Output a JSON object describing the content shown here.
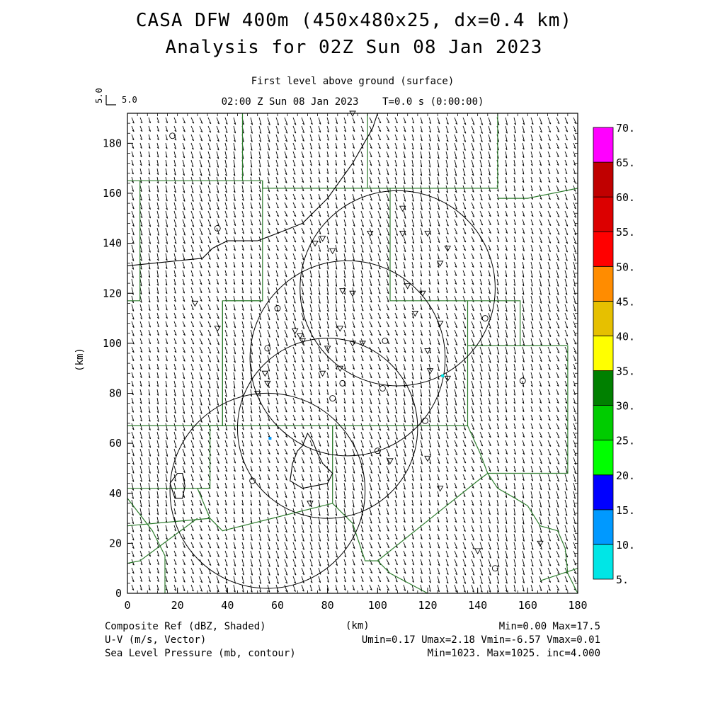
{
  "title_line1": "CASA DFW 400m (450x480x25, dx=0.4 km)",
  "title_line2": "Analysis for 02Z Sun 08 Jan 2023",
  "subtitle": "First level above ground (surface)",
  "time_line": "02:00 Z Sun 08 Jan 2023    T=0.0 s (0:00:00)",
  "reference_vector": {
    "label": "5.0",
    "value": 5.0
  },
  "footer": {
    "left": [
      "Composite Ref (dBZ, Shaded)",
      "U-V (m/s, Vector)",
      "Sea Level Pressure (mb, contour)"
    ],
    "center": "(km)",
    "right": [
      "Min=0.00 Max=17.5",
      "Umin=0.17 Umax=2.18 Vmin=-6.57 Vmax=0.01",
      "Min=1023. Max=1025. inc=4.000"
    ]
  },
  "colors": {
    "county_lines": "#2e7d2e",
    "contours": "#000000",
    "echo": "#1e90ff"
  },
  "chart_data": {
    "type": "map",
    "xlabel": "(km)",
    "ylabel": "(km)",
    "xlim": [
      0,
      180
    ],
    "ylim": [
      0,
      192
    ],
    "xticks": [
      0,
      20,
      40,
      60,
      80,
      100,
      120,
      140,
      160,
      180
    ],
    "yticks": [
      0,
      20,
      40,
      60,
      80,
      100,
      120,
      140,
      160,
      180
    ],
    "colorbar": {
      "levels": [
        "5.",
        "10.",
        "15.",
        "20.",
        "25.",
        "30.",
        "35.",
        "40.",
        "45.",
        "50.",
        "55.",
        "60.",
        "65.",
        "70."
      ],
      "colors": [
        "#00e6e6",
        "#0099ff",
        "#0000ff",
        "#00ff00",
        "#00cc00",
        "#008000",
        "#ffff00",
        "#e6c000",
        "#ff8c00",
        "#ff0000",
        "#dc0000",
        "#c00000",
        "#ff00ff"
      ]
    },
    "wind": {
      "u_mean": 1.2,
      "v_mean": -3.8
    },
    "radar_rings": [
      {
        "x": 56,
        "y": 41,
        "r": 39
      },
      {
        "x": 80,
        "y": 66,
        "r": 36
      },
      {
        "x": 88,
        "y": 94,
        "r": 39
      },
      {
        "x": 108,
        "y": 122,
        "r": 39
      }
    ],
    "pressure_contours": [
      {
        "label": "1025",
        "points": [
          [
            0,
            131
          ],
          [
            10,
            132
          ],
          [
            20,
            133
          ],
          [
            30,
            134
          ],
          [
            34,
            138
          ],
          [
            40,
            141
          ],
          [
            52,
            141
          ],
          [
            60,
            144
          ],
          [
            70,
            148
          ],
          [
            80,
            158
          ],
          [
            90,
            172
          ],
          [
            98,
            186
          ],
          [
            100,
            192
          ]
        ]
      },
      {
        "label": "1024",
        "points": [
          [
            70,
            59
          ],
          [
            72,
            64
          ],
          [
            74,
            61
          ],
          [
            76,
            56
          ],
          [
            78,
            52
          ],
          [
            82,
            48
          ],
          [
            80,
            44
          ],
          [
            70,
            42
          ],
          [
            65,
            45
          ],
          [
            66,
            52
          ],
          [
            68,
            57
          ],
          [
            70,
            59
          ]
        ]
      },
      {
        "label": "1024b",
        "points": [
          [
            20,
            48
          ],
          [
            22,
            48
          ],
          [
            23,
            43
          ],
          [
            22,
            38
          ],
          [
            19,
            38
          ],
          [
            17,
            44
          ],
          [
            20,
            48
          ]
        ]
      }
    ],
    "echoes": [
      {
        "x": 57,
        "y": 62,
        "dbz": 17.5
      },
      {
        "x": 126,
        "y": 87,
        "dbz": 10
      }
    ]
  }
}
